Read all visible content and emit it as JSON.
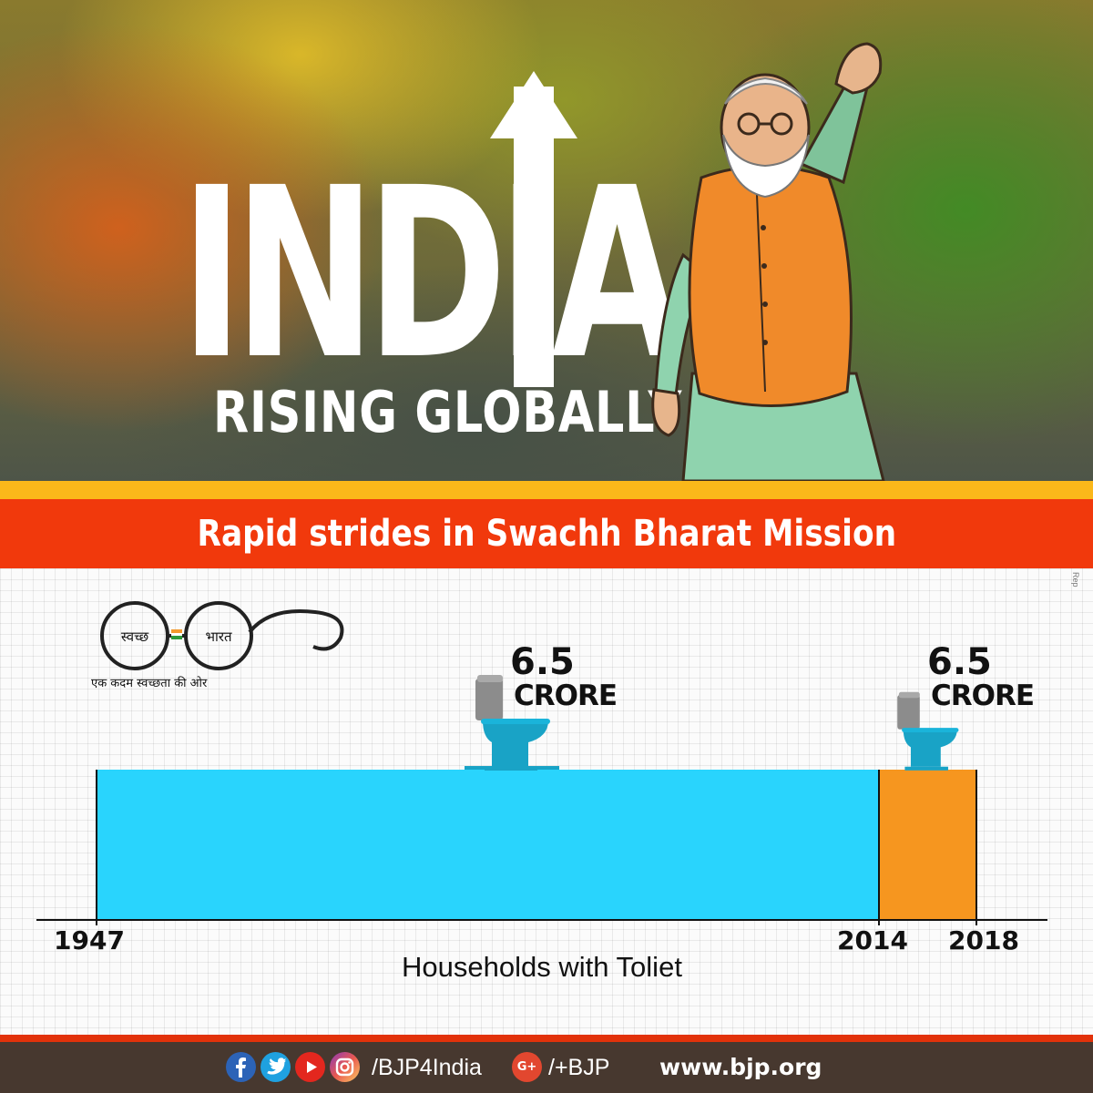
{
  "hero": {
    "title": "INDIA",
    "subtitle": "RISING GLOBALLY"
  },
  "banner": {
    "text": "Rapid strides in Swachh Bharat Mission"
  },
  "logo": {
    "left_lens_text": "स्वच्छ",
    "right_lens_text": "भारत",
    "tagline": "एक कदम स्वच्छता की ओर"
  },
  "side_note": "Rep",
  "chart_data": {
    "type": "bar",
    "title": "Rapid strides in Swachh Bharat Mission",
    "xlabel": "Households with Toliet",
    "ylabel": "",
    "x_ticks": [
      "1947",
      "2014",
      "2018"
    ],
    "unit": "CRORE",
    "series": [
      {
        "start": "1947",
        "end": "2014",
        "value": 6.5,
        "value_label": "6.5",
        "unit_label": "CRORE",
        "color": "#29d4fd"
      },
      {
        "start": "2014",
        "end": "2018",
        "value": 6.5,
        "value_label": "6.5",
        "unit_label": "CRORE",
        "color": "#f6961f"
      }
    ]
  },
  "footer": {
    "social_icons": [
      "facebook-icon",
      "twitter-icon",
      "youtube-icon",
      "instagram-icon"
    ],
    "handle": "/BJP4India",
    "gplus_icon_text": "G+",
    "gplus_handle": "/+BJP",
    "website": "www.bjp.org"
  },
  "colors": {
    "banner_red": "#f1390c",
    "band_yellow": "#fbb81a",
    "bar_blue": "#29d4fd",
    "bar_orange": "#f6961f",
    "footer_brown": "#47382f",
    "toilet_blue": "#19a3c6",
    "toilet_grey": "#8c8c8c"
  }
}
